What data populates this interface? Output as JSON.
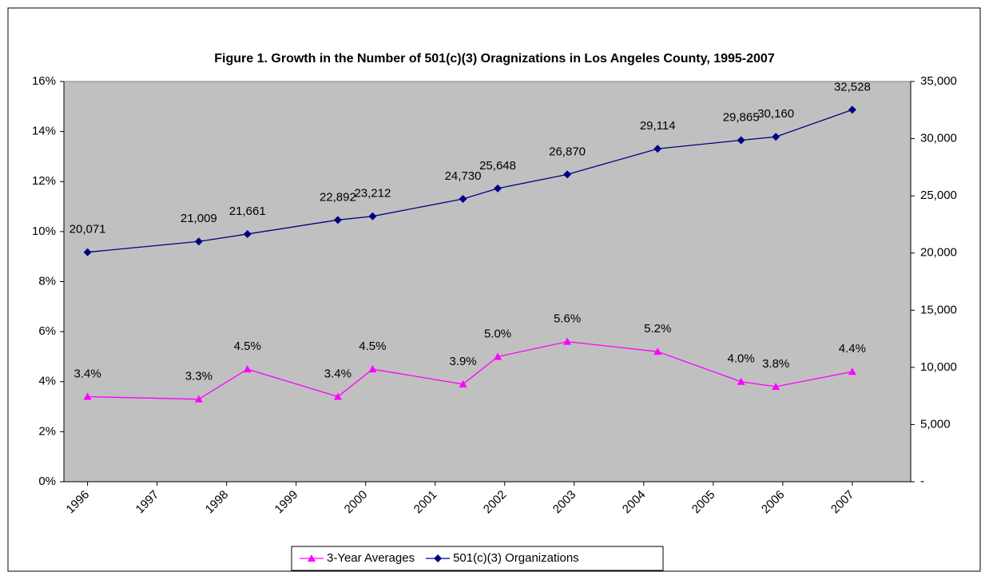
{
  "chart_data": {
    "type": "line",
    "title": "Figure 1. Growth in the Number of 501(c)(3) Oragnizations in Los Angeles County, 1995-2007",
    "x": [
      1996.0,
      1997.6,
      1998.3,
      1999.6,
      2000.1,
      2001.4,
      2001.9,
      2002.9,
      2004.2,
      2005.4,
      2005.9,
      2007.0
    ],
    "xlim": [
      1995.66,
      2007.84
    ],
    "xticks": [
      1996,
      1997,
      1998,
      1999,
      2000,
      2001,
      2002,
      2003,
      2004,
      2005,
      2006,
      2007
    ],
    "ylim": [
      0,
      16
    ],
    "yticks": [
      {
        "value": 0,
        "label": "0%"
      },
      {
        "value": 2,
        "label": "2%"
      },
      {
        "value": 4,
        "label": "4%"
      },
      {
        "value": 6,
        "label": "6%"
      },
      {
        "value": 8,
        "label": "8%"
      },
      {
        "value": 10,
        "label": "10%"
      },
      {
        "value": 12,
        "label": "12%"
      },
      {
        "value": 14,
        "label": "14%"
      },
      {
        "value": 16,
        "label": "16%"
      }
    ],
    "y2lim": [
      0,
      35000
    ],
    "y2ticks": [
      {
        "value": 0,
        "label": "-"
      },
      {
        "value": 5000,
        "label": "5,000"
      },
      {
        "value": 10000,
        "label": "10,000"
      },
      {
        "value": 15000,
        "label": "15,000"
      },
      {
        "value": 20000,
        "label": "20,000"
      },
      {
        "value": 25000,
        "label": "25,000"
      },
      {
        "value": 30000,
        "label": "30,000"
      },
      {
        "value": 35000,
        "label": "35,000"
      }
    ],
    "series": [
      {
        "name": "3-Year Averages",
        "color": "#ff00ff",
        "marker": "triangle",
        "axis": "y",
        "values": [
          3.4,
          3.3,
          4.5,
          3.4,
          4.5,
          3.9,
          5.0,
          5.6,
          5.2,
          4.0,
          3.8,
          4.4
        ],
        "value_labels": [
          "3.4%",
          "3.3%",
          "4.5%",
          "3.4%",
          "4.5%",
          "3.9%",
          "5.0%",
          "5.6%",
          "5.2%",
          "4.0%",
          "3.8%",
          "4.4%"
        ]
      },
      {
        "name": "501(c)(3) Organizations",
        "color": "#000080",
        "marker": "diamond",
        "axis": "y2",
        "values": [
          20071,
          21009,
          21661,
          22892,
          23212,
          24730,
          25648,
          26870,
          29114,
          29865,
          30160,
          32528
        ],
        "value_labels": [
          "20,071",
          "21,009",
          "21,661",
          "22,892",
          "23,212",
          "24,730",
          "25,648",
          "26,870",
          "29,114",
          "29,865",
          "30,160",
          "32,528"
        ]
      }
    ],
    "legend": "bottom",
    "plot_background": "#c0c0c0"
  }
}
